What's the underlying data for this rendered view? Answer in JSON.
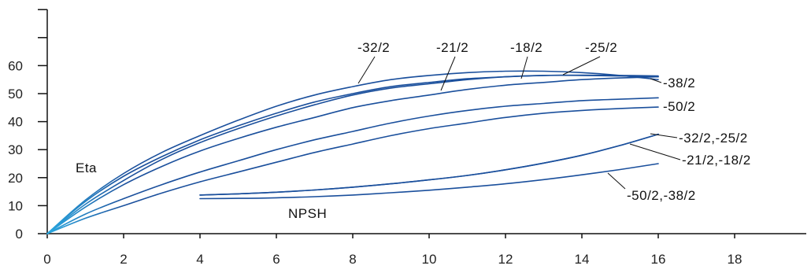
{
  "chart_data": {
    "type": "line",
    "title": "",
    "xlabel": "",
    "ylabel": "",
    "xlim": [
      0,
      20
    ],
    "ylim": [
      0,
      80
    ],
    "x_ticks": [
      0,
      2,
      4,
      6,
      8,
      10,
      12,
      14,
      16,
      18
    ],
    "y_ticks": [
      0,
      10,
      20,
      30,
      40,
      50,
      60
    ],
    "y_extra_ticks": [
      70,
      80
    ],
    "grid": false,
    "groups": {
      "efficiency": "Eta",
      "npsh": "NPSH"
    },
    "series": [
      {
        "name": "-32/2",
        "group": "efficiency",
        "color": "#1a4f9c",
        "x": [
          0,
          1,
          2,
          3,
          4,
          5,
          6,
          7,
          8,
          9,
          10,
          11,
          12,
          13,
          14,
          15,
          16
        ],
        "y": [
          0,
          12,
          21.5,
          29,
          35,
          40.5,
          45.5,
          49.5,
          52.5,
          55,
          56.5,
          57.5,
          58,
          58,
          57.5,
          56.5,
          55
        ]
      },
      {
        "name": "-21/2",
        "group": "efficiency",
        "color": "#1a4f9c",
        "x": [
          0,
          1,
          2,
          3,
          4,
          5,
          6,
          7,
          8,
          9,
          10,
          11,
          12,
          13,
          14,
          15,
          16
        ],
        "y": [
          0,
          11.5,
          20.5,
          27.5,
          33.5,
          38.5,
          43,
          47,
          50,
          52.5,
          54,
          55.3,
          56,
          56.5,
          56.5,
          56.3,
          56
        ]
      },
      {
        "name": "-18/2",
        "group": "efficiency",
        "color": "#1a4f9c",
        "x": [
          0,
          1,
          2,
          3,
          4,
          5,
          6,
          7,
          8,
          9,
          10,
          11,
          12,
          13,
          14,
          15,
          16
        ],
        "y": [
          0,
          10.5,
          19,
          26.5,
          32.5,
          37.5,
          42,
          46,
          49.5,
          52,
          53.5,
          55,
          56,
          56.5,
          56.6,
          56.5,
          56.3
        ]
      },
      {
        "name": "-25/2",
        "group": "efficiency",
        "color": "#1a4f9c",
        "x": [
          0,
          1,
          2,
          3,
          4,
          5,
          6,
          7,
          8,
          9,
          10,
          11,
          12,
          13,
          14,
          15,
          16
        ],
        "y": [
          0,
          9.5,
          17.5,
          24,
          29.5,
          34,
          38,
          41.5,
          45,
          47.5,
          49.5,
          51.5,
          53,
          54,
          55,
          55.6,
          56
        ]
      },
      {
        "name": "-38/2",
        "group": "efficiency",
        "color": "#1a4f9c",
        "x": [
          0,
          1,
          2,
          3,
          4,
          5,
          6,
          7,
          8,
          9,
          10,
          11,
          12,
          13,
          14,
          15,
          16
        ],
        "y": [
          0,
          7,
          12.5,
          17.5,
          22,
          26,
          30,
          33.5,
          36.5,
          39.5,
          42,
          44,
          45.5,
          46.5,
          47.5,
          48,
          48.5
        ]
      },
      {
        "name": "-50/2",
        "group": "efficiency",
        "color": "#1a4f9c",
        "x": [
          0,
          1,
          2,
          3,
          4,
          5,
          6,
          7,
          8,
          9,
          10,
          11,
          12,
          13,
          14,
          15,
          16
        ],
        "y": [
          0,
          5.5,
          10,
          14.5,
          18.5,
          22,
          25.5,
          29,
          32,
          35,
          37.5,
          39.5,
          41.5,
          43,
          44,
          44.7,
          45.2
        ]
      },
      {
        "name": "-32/2,-25/2",
        "group": "npsh",
        "color": "#1a4f9c",
        "x": [
          4,
          5,
          6,
          7,
          8,
          9,
          10,
          11,
          12,
          13,
          14,
          15,
          16
        ],
        "y": [
          13.8,
          14.2,
          14.8,
          15.6,
          16.6,
          17.8,
          19.2,
          20.8,
          22.8,
          25.2,
          28,
          31.5,
          35.5
        ]
      },
      {
        "name": "-21/2,-18/2",
        "group": "npsh",
        "color": "#1a4f9c",
        "x": [
          4,
          5,
          6,
          7,
          8,
          9,
          10,
          11,
          12,
          13,
          14,
          15,
          16
        ],
        "y": [
          13.8,
          14.2,
          14.8,
          15.6,
          16.6,
          17.8,
          19.2,
          20.8,
          22.8,
          25.2,
          28,
          31.5,
          35.5
        ]
      },
      {
        "name": "-50/2,-38/2",
        "group": "npsh",
        "color": "#1a4f9c",
        "x": [
          4,
          5,
          6,
          7,
          8,
          9,
          10,
          11,
          12,
          13,
          14,
          15,
          16
        ],
        "y": [
          12.5,
          12.6,
          12.8,
          13.2,
          13.8,
          14.6,
          15.5,
          16.6,
          17.8,
          19.3,
          21,
          22.9,
          25
        ]
      }
    ]
  }
}
